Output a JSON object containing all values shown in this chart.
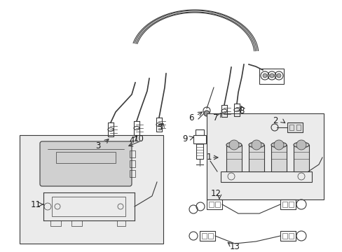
{
  "background_color": "#ffffff",
  "line_color": "#3a3a3a",
  "label_color": "#1a1a1a",
  "box_fill": "#e8e8e8",
  "fig_width": 4.89,
  "fig_height": 3.6,
  "dpi": 100
}
